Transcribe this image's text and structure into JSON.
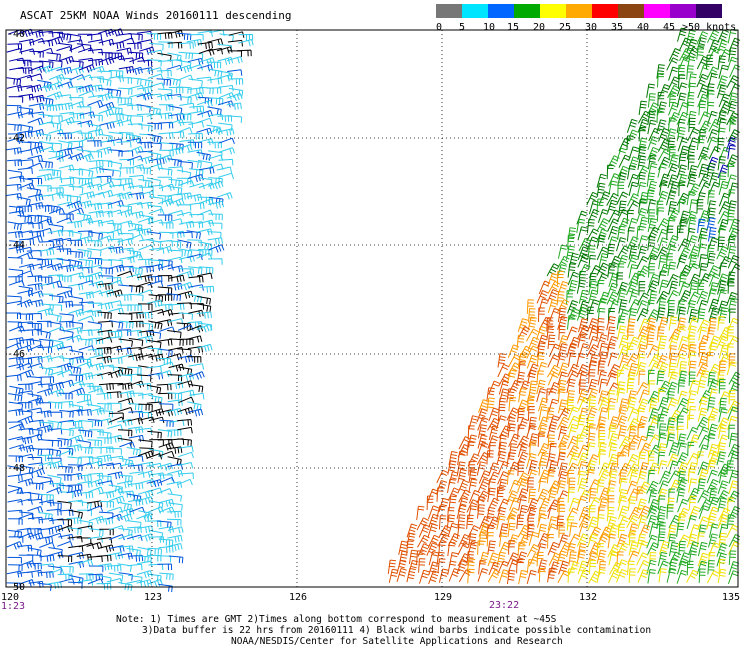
{
  "title": "ASCAT 25KM NOAA Winds 20160111 descending",
  "legend": {
    "labels": [
      "0",
      "5",
      "10",
      "15",
      "20",
      "25",
      "30",
      "35",
      "40",
      "45",
      ">50 knots"
    ],
    "colors": [
      "#777777",
      "#00e5ff",
      "#0066ff",
      "#00aa00",
      "#ffff00",
      "#ffaa00",
      "#ff0000",
      "#8b4513",
      "#ff00ff",
      "#9900cc",
      "#330066"
    ]
  },
  "axes": {
    "lon_labels": [
      "120",
      "123",
      "126",
      "129",
      "132",
      "135"
    ],
    "lat_labels": [
      "-40",
      "-42",
      "-44",
      "-46",
      "-48",
      "-50"
    ]
  },
  "pass_times": [
    "1:23",
    "23:22"
  ],
  "notes": {
    "line1": "Note: 1) Times are GMT 2)Times along bottom correspond to measurement at ~45S",
    "line2": "3)Data buffer is 22 hrs from 20160111 4) Black wind barbs indicate possible contamination",
    "line3": "NOAA/NESDIS/Center for Satellite Applications and Research"
  },
  "map_data": {
    "lon_range": [
      120,
      135
    ],
    "lat_range": [
      -50,
      -40
    ],
    "wind_colors": {
      "black": "#000000",
      "light_blue": "#33ccee",
      "blue": "#0055dd",
      "dark_blue": "#0000aa",
      "green": "#22aa22",
      "dark_green": "#007700",
      "yellow": "#f0e000",
      "orange": "#ff9900",
      "dark_orange": "#e05000"
    }
  }
}
